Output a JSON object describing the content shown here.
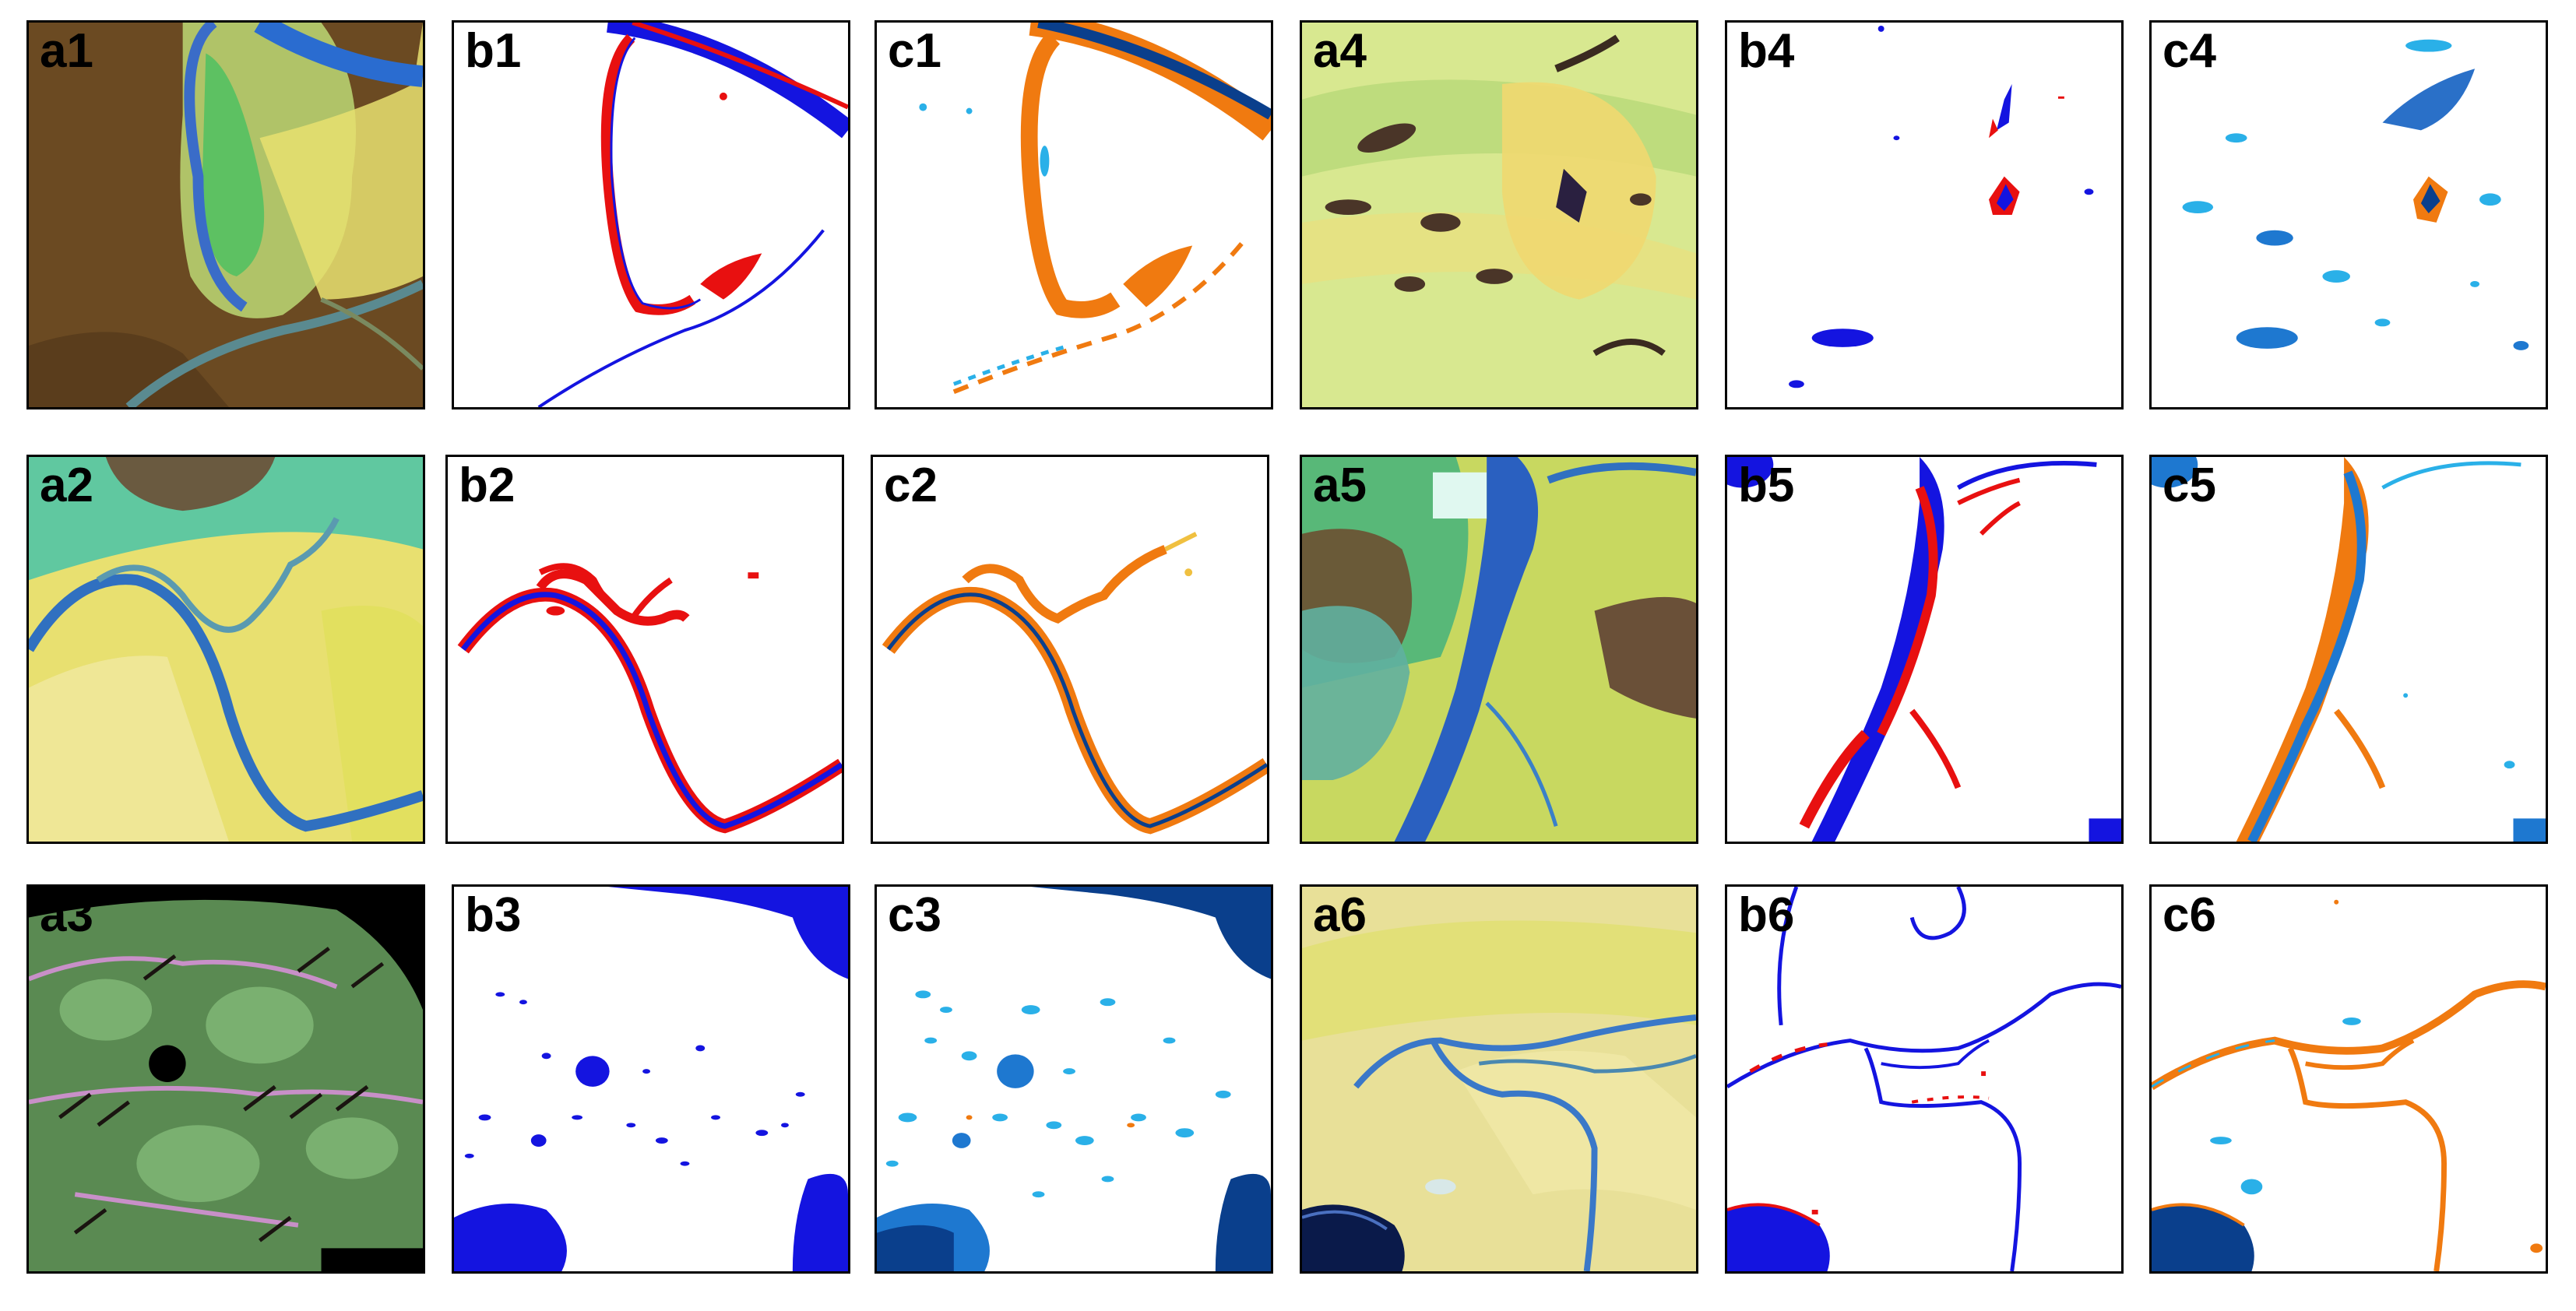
{
  "figure": {
    "panels": [
      {
        "id": "a1",
        "label": "a1",
        "kind": "satellite"
      },
      {
        "id": "b1",
        "label": "b1",
        "kind": "binary-water-map"
      },
      {
        "id": "c1",
        "label": "c1",
        "kind": "water-fraction-map"
      },
      {
        "id": "a4",
        "label": "a4",
        "kind": "satellite"
      },
      {
        "id": "b4",
        "label": "b4",
        "kind": "binary-water-map"
      },
      {
        "id": "c4",
        "label": "c4",
        "kind": "water-fraction-map"
      },
      {
        "id": "a2",
        "label": "a2",
        "kind": "satellite"
      },
      {
        "id": "b2",
        "label": "b2",
        "kind": "binary-water-map"
      },
      {
        "id": "c2",
        "label": "c2",
        "kind": "water-fraction-map"
      },
      {
        "id": "a5",
        "label": "a5",
        "kind": "satellite"
      },
      {
        "id": "b5",
        "label": "b5",
        "kind": "binary-water-map"
      },
      {
        "id": "c5",
        "label": "c5",
        "kind": "water-fraction-map"
      },
      {
        "id": "a3",
        "label": "a3",
        "kind": "satellite"
      },
      {
        "id": "b3",
        "label": "b3",
        "kind": "binary-water-map"
      },
      {
        "id": "c3",
        "label": "c3",
        "kind": "water-fraction-map"
      },
      {
        "id": "a6",
        "label": "a6",
        "kind": "satellite"
      },
      {
        "id": "b6",
        "label": "b6",
        "kind": "binary-water-map"
      },
      {
        "id": "c6",
        "label": "c6",
        "kind": "water-fraction-map"
      }
    ],
    "colors": {
      "water_blue": "#1414e0",
      "omission_red": "#e81010",
      "fraction_orange": "#f07a10",
      "fraction_dark_blue": "#0a3f8c",
      "fraction_light_blue": "#2ab0e8"
    }
  }
}
